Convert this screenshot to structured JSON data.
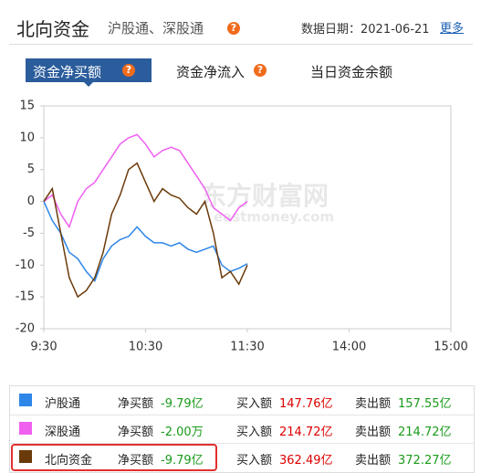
{
  "header": {
    "title": "北向资金",
    "subtitle": "沪股通、深股通",
    "date": "数据日期：2021-06-21",
    "more": "更多"
  },
  "tabs": [
    "资金净买额",
    "资金净流入",
    "当日资金余额"
  ],
  "watermark": [
    "东方财富网",
    "eastmoney.com"
  ],
  "chart_data": {
    "type": "line",
    "x": [
      "9:30",
      "9:35",
      "9:40",
      "9:45",
      "9:50",
      "9:55",
      "10:00",
      "10:05",
      "10:10",
      "10:15",
      "10:20",
      "10:25",
      "10:30",
      "10:35",
      "10:40",
      "10:45",
      "10:50",
      "10:55",
      "11:00",
      "11:05",
      "11:10",
      "11:15",
      "11:20",
      "11:25",
      "11:30"
    ],
    "xlim": [
      "9:30",
      "15:00"
    ],
    "xticks": [
      "9:30",
      "10:30",
      "11:30",
      "14:00",
      "15:00"
    ],
    "ylim": [
      -20,
      15
    ],
    "yticks": [
      -20,
      -15,
      -10,
      -5,
      0,
      5,
      10,
      15
    ],
    "grid": false,
    "series": [
      {
        "name": "沪股通",
        "color": "#2e86e8",
        "values": [
          0,
          -3,
          -5,
          -8,
          -9,
          -11,
          -12.5,
          -9,
          -7,
          -6,
          -5.5,
          -4,
          -5.5,
          -6.5,
          -6.5,
          -7,
          -6.5,
          -7.5,
          -8,
          -7.5,
          -7,
          -10,
          -11,
          -10.5,
          -9.79
        ]
      },
      {
        "name": "深股通",
        "color": "#f060f0",
        "values": [
          0,
          1,
          -2,
          -4,
          0,
          2,
          3,
          5,
          7,
          9,
          10,
          10.5,
          9,
          7,
          8,
          8.5,
          8,
          6,
          4,
          2,
          -1,
          -2,
          -3,
          -1,
          0
        ]
      },
      {
        "name": "北向资金",
        "color": "#6b3a0a",
        "values": [
          0,
          2,
          -5,
          -12,
          -15,
          -14,
          -12,
          -8,
          -2,
          1,
          5,
          6,
          3,
          0,
          2,
          1,
          0.5,
          -1,
          -2,
          0,
          -5,
          -12,
          -11,
          -13,
          -10
        ]
      }
    ]
  },
  "summary": {
    "rows": [
      [
        "净买额",
        "-9.79亿",
        "买入额",
        "147.76亿",
        "卖出额",
        "157.55亿"
      ],
      [
        "净买额",
        "-2.00万",
        "买入额",
        "214.72亿",
        "卖出额",
        "214.72亿"
      ],
      [
        "净买额",
        "-9.79亿",
        "买入额",
        "362.49亿",
        "卖出额",
        "372.27亿"
      ]
    ]
  }
}
